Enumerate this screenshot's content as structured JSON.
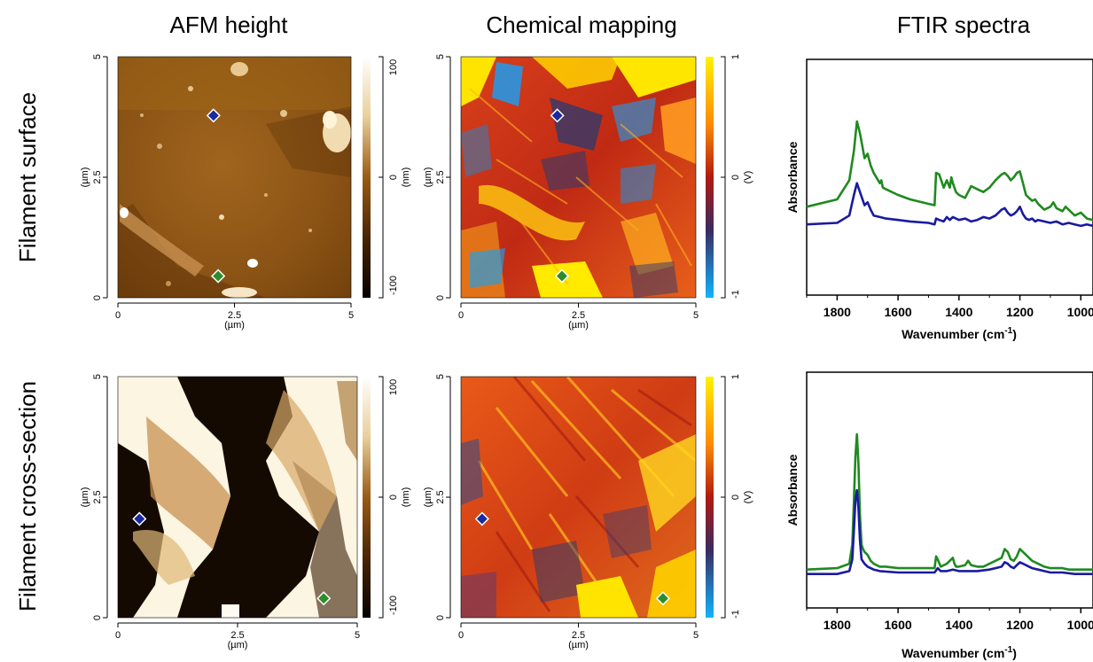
{
  "column_titles": [
    "AFM height",
    "Chemical mapping",
    "FTIR spectra"
  ],
  "row_titles": [
    "Filament surface",
    "Filament cross-section"
  ],
  "map_axes": {
    "x_ticks": [
      "0",
      "2.5",
      "5"
    ],
    "y_ticks": [
      "0",
      "2.5",
      "5"
    ],
    "unit": "(µm)"
  },
  "afm_colorbar": {
    "ticks": [
      "100",
      "0",
      "-100"
    ],
    "unit": "(nm)"
  },
  "chem_colorbar": {
    "ticks": [
      "1",
      "0",
      "-1"
    ],
    "unit": "(V)"
  },
  "ftir_axes": {
    "x_ticks": [
      "1800",
      "1600",
      "1400",
      "1200",
      "1000"
    ],
    "ylabel": "Absorbance",
    "xlabel_main": "Wavenumber (cm",
    "xlabel_sup": "-1",
    "xlabel_end": ")"
  },
  "colors": {
    "green_marker": "#2e8b2e",
    "blue_marker": "#1a2aa0",
    "green_line": "#1f8a1f",
    "blue_line": "#1a1aa0",
    "afm_bright": "#fffdf2",
    "afm_dark": "#0d0500",
    "chem_high": "#ffee00",
    "chem_low": "#1ea0ff"
  },
  "markers": {
    "surface": {
      "blue": [
        2.05,
        3.78
      ],
      "green": [
        2.15,
        0.45
      ]
    },
    "cross": {
      "blue": [
        0.45,
        2.05
      ],
      "green": [
        4.3,
        0.4
      ]
    }
  },
  "chart_data": [
    {
      "type": "line",
      "panel": "Filament surface FTIR spectra",
      "xlabel": "Wavenumber (cm-1)",
      "ylabel": "Absorbance",
      "xlim": [
        1900,
        960
      ],
      "x_reversed": true,
      "series": [
        {
          "color": "green",
          "x": [
            1900,
            1800,
            1760,
            1745,
            1735,
            1725,
            1710,
            1700,
            1690,
            1680,
            1660,
            1655,
            1650,
            1640,
            1600,
            1560,
            1500,
            1480,
            1475,
            1465,
            1450,
            1440,
            1430,
            1425,
            1420,
            1410,
            1400,
            1380,
            1370,
            1360,
            1340,
            1320,
            1300,
            1280,
            1260,
            1250,
            1240,
            1230,
            1220,
            1210,
            1200,
            1190,
            1180,
            1170,
            1160,
            1150,
            1140,
            1120,
            1100,
            1090,
            1080,
            1060,
            1050,
            1040,
            1020,
            1000,
            980,
            960
          ],
          "y": [
            0.42,
            0.47,
            0.6,
            0.8,
            1.0,
            0.92,
            0.75,
            0.78,
            0.7,
            0.65,
            0.58,
            0.6,
            0.55,
            0.54,
            0.5,
            0.47,
            0.44,
            0.43,
            0.65,
            0.64,
            0.55,
            0.6,
            0.55,
            0.62,
            0.58,
            0.52,
            0.5,
            0.48,
            0.52,
            0.56,
            0.54,
            0.52,
            0.55,
            0.6,
            0.64,
            0.65,
            0.63,
            0.6,
            0.62,
            0.65,
            0.66,
            0.58,
            0.5,
            0.48,
            0.46,
            0.47,
            0.44,
            0.4,
            0.42,
            0.45,
            0.41,
            0.39,
            0.42,
            0.4,
            0.36,
            0.38,
            0.34,
            0.33
          ]
        },
        {
          "color": "blue",
          "x": [
            1900,
            1800,
            1760,
            1745,
            1735,
            1725,
            1710,
            1700,
            1690,
            1680,
            1660,
            1640,
            1600,
            1560,
            1500,
            1480,
            1475,
            1465,
            1450,
            1440,
            1430,
            1420,
            1400,
            1380,
            1360,
            1340,
            1320,
            1300,
            1280,
            1260,
            1250,
            1240,
            1230,
            1220,
            1210,
            1200,
            1190,
            1180,
            1170,
            1160,
            1150,
            1140,
            1120,
            1100,
            1080,
            1060,
            1040,
            1020,
            1000,
            980,
            960
          ],
          "y": [
            0.3,
            0.31,
            0.36,
            0.5,
            0.58,
            0.52,
            0.43,
            0.45,
            0.4,
            0.36,
            0.35,
            0.34,
            0.33,
            0.32,
            0.31,
            0.3,
            0.34,
            0.33,
            0.32,
            0.35,
            0.33,
            0.35,
            0.33,
            0.34,
            0.32,
            0.33,
            0.35,
            0.34,
            0.36,
            0.4,
            0.41,
            0.38,
            0.36,
            0.37,
            0.39,
            0.42,
            0.37,
            0.34,
            0.33,
            0.34,
            0.32,
            0.33,
            0.32,
            0.31,
            0.32,
            0.3,
            0.31,
            0.3,
            0.29,
            0.3,
            0.29
          ]
        }
      ]
    },
    {
      "type": "line",
      "panel": "Filament cross-section FTIR spectra",
      "xlabel": "Wavenumber (cm-1)",
      "ylabel": "Absorbance",
      "xlim": [
        1900,
        960
      ],
      "x_reversed": true,
      "series": [
        {
          "color": "green",
          "x": [
            1900,
            1800,
            1760,
            1750,
            1745,
            1740,
            1735,
            1730,
            1725,
            1720,
            1715,
            1710,
            1700,
            1690,
            1680,
            1660,
            1640,
            1600,
            1560,
            1500,
            1480,
            1475,
            1470,
            1460,
            1440,
            1420,
            1415,
            1410,
            1400,
            1380,
            1370,
            1360,
            1340,
            1320,
            1300,
            1280,
            1260,
            1250,
            1240,
            1230,
            1220,
            1210,
            1200,
            1190,
            1180,
            1170,
            1160,
            1140,
            1120,
            1100,
            1080,
            1060,
            1040,
            1020,
            1000,
            980,
            960
          ],
          "y": [
            0.08,
            0.09,
            0.12,
            0.25,
            0.55,
            0.85,
            1.0,
            0.8,
            0.45,
            0.25,
            0.22,
            0.2,
            0.18,
            0.14,
            0.12,
            0.1,
            0.1,
            0.09,
            0.09,
            0.09,
            0.09,
            0.17,
            0.15,
            0.1,
            0.12,
            0.16,
            0.12,
            0.1,
            0.1,
            0.11,
            0.14,
            0.11,
            0.1,
            0.1,
            0.12,
            0.14,
            0.16,
            0.22,
            0.2,
            0.15,
            0.14,
            0.17,
            0.22,
            0.2,
            0.18,
            0.16,
            0.14,
            0.12,
            0.1,
            0.09,
            0.09,
            0.09,
            0.08,
            0.08,
            0.08,
            0.08,
            0.08
          ]
        },
        {
          "color": "blue",
          "x": [
            1900,
            1800,
            1760,
            1750,
            1745,
            1740,
            1735,
            1730,
            1725,
            1720,
            1710,
            1700,
            1680,
            1660,
            1600,
            1500,
            1480,
            1470,
            1460,
            1440,
            1420,
            1400,
            1380,
            1360,
            1340,
            1300,
            1280,
            1260,
            1250,
            1240,
            1230,
            1220,
            1210,
            1200,
            1190,
            1180,
            1170,
            1160,
            1140,
            1120,
            1100,
            1060,
            1020,
            1000,
            980,
            960
          ],
          "y": [
            0.05,
            0.05,
            0.07,
            0.15,
            0.35,
            0.55,
            0.62,
            0.5,
            0.28,
            0.15,
            0.12,
            0.1,
            0.08,
            0.07,
            0.06,
            0.06,
            0.06,
            0.09,
            0.07,
            0.07,
            0.08,
            0.07,
            0.07,
            0.07,
            0.07,
            0.08,
            0.09,
            0.1,
            0.13,
            0.12,
            0.1,
            0.09,
            0.11,
            0.13,
            0.12,
            0.11,
            0.1,
            0.09,
            0.08,
            0.07,
            0.06,
            0.06,
            0.05,
            0.05,
            0.05,
            0.05
          ]
        }
      ]
    }
  ]
}
